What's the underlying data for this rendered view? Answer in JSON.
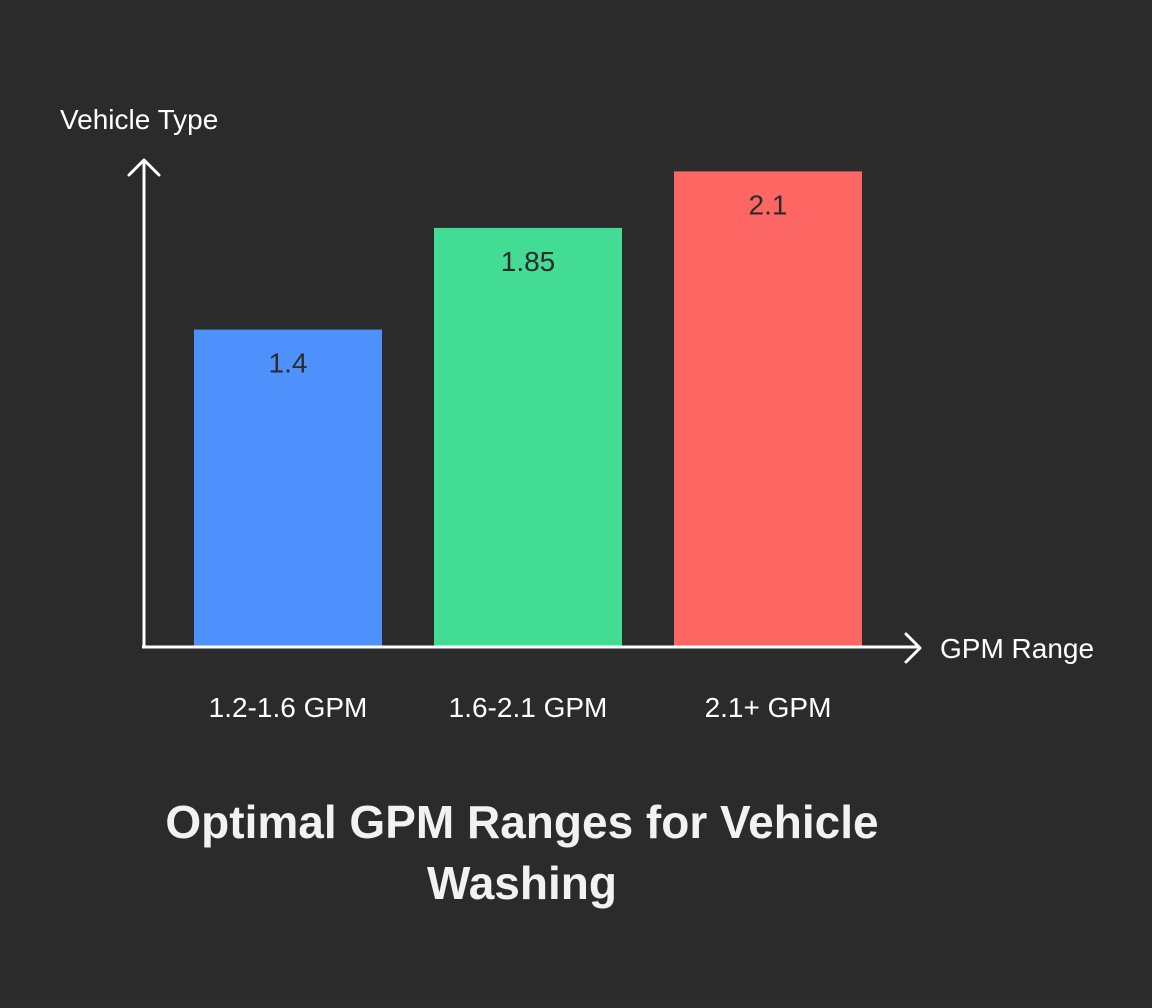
{
  "chart_data": {
    "type": "bar",
    "title": "Optimal GPM Ranges for Vehicle Washing",
    "title_lines": [
      "Optimal GPM Ranges for Vehicle",
      "Washing"
    ],
    "xlabel": "GPM Range",
    "ylabel": "Vehicle Type",
    "categories": [
      "1.2-1.6 GPM",
      "1.6-2.1 GPM",
      "2.1+ GPM"
    ],
    "values": [
      1.4,
      1.85,
      2.1
    ],
    "value_labels": [
      "1.4",
      "1.85",
      "2.1"
    ],
    "colors": [
      "#4f91fc",
      "#43dc94",
      "#fc6764"
    ],
    "ylim": [
      0,
      2.3
    ],
    "grid": false,
    "legend": "none"
  },
  "colors": {
    "background": "#2b2b2b",
    "axis": "#ffffff",
    "text": "#ffffff",
    "data_label": "#2b2b2b"
  }
}
